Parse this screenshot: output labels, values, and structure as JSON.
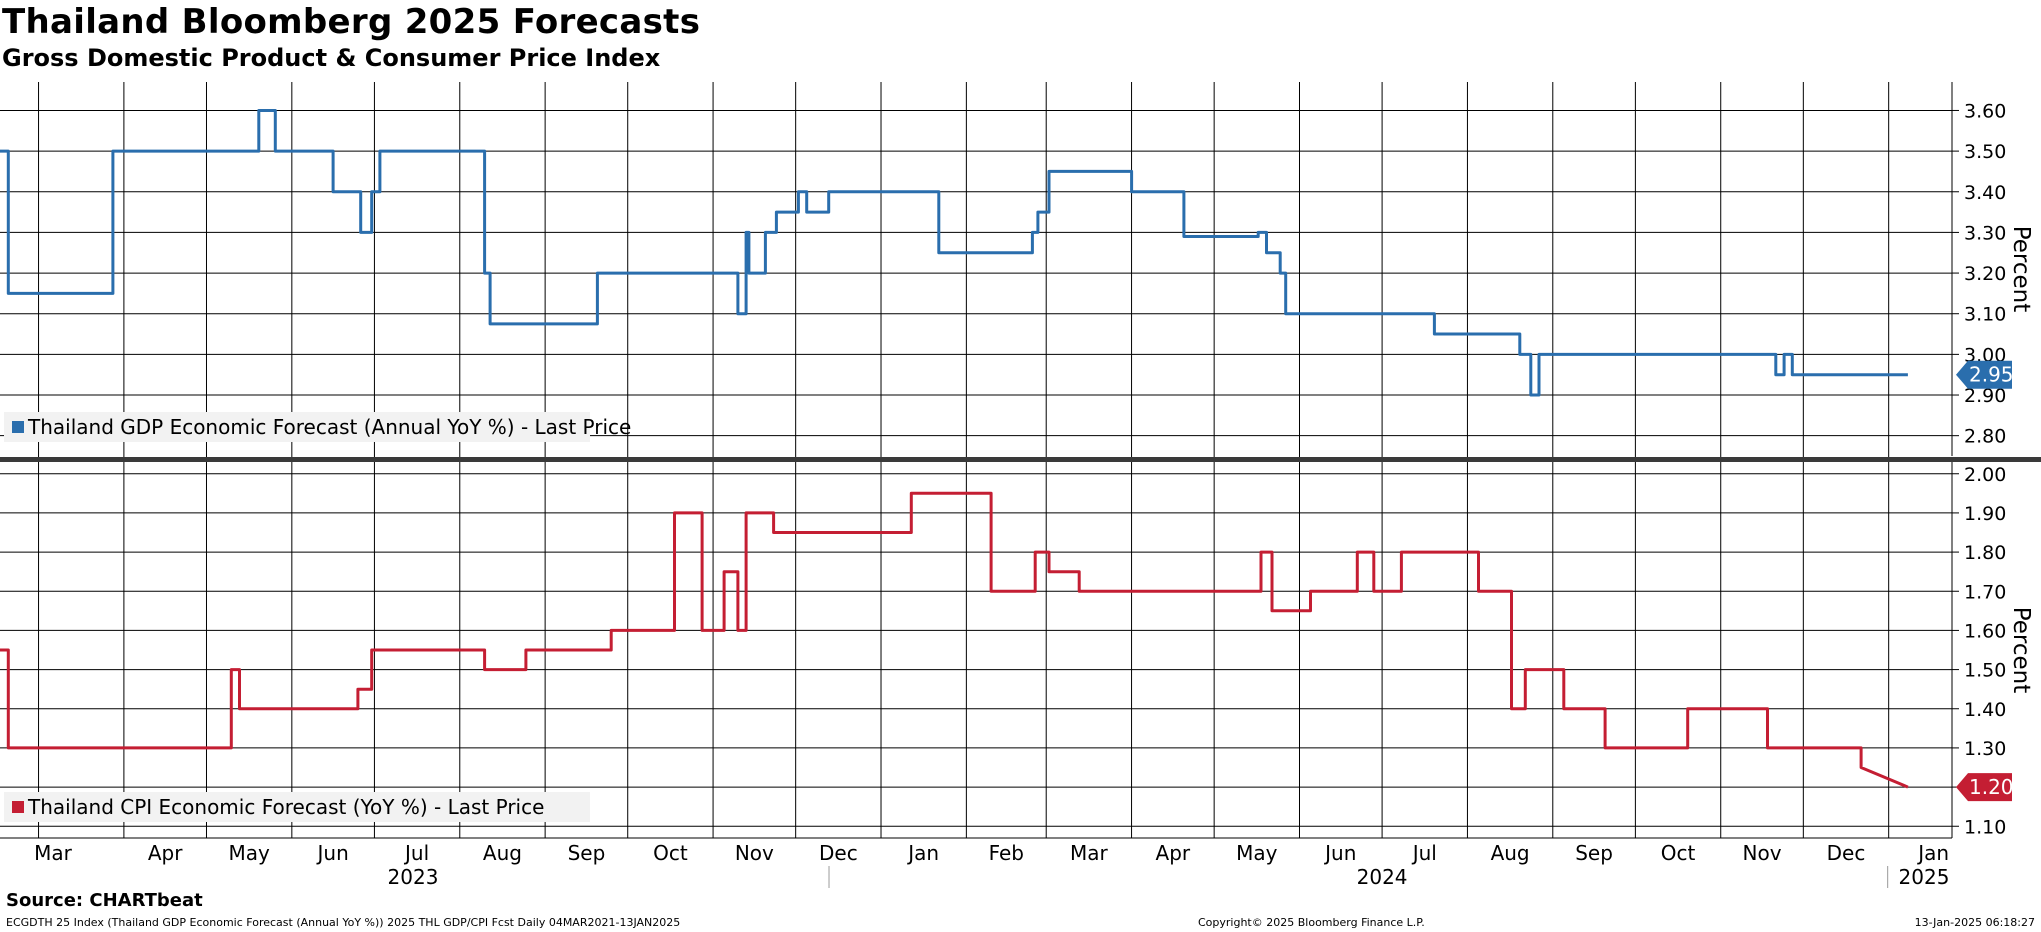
{
  "title": "Thailand Bloomberg 2025 Forecasts",
  "subtitle": "Gross Domestic Product & Consumer Price Index",
  "source": "Source: CHARTbeat",
  "footer": {
    "left": "ECGDTH 25 Index (Thailand GDP Economic Forecast (Annual YoY %)) 2025 THL GDP/CPI Fcst  Daily 04MAR2021-13JAN2025",
    "center": "Copyright© 2025 Bloomberg Finance L.P.",
    "right": "13-Jan-2025 06:18:27"
  },
  "colors": {
    "gdp": "#2a6ead",
    "cpi": "#c41e33",
    "grid": "#000000"
  },
  "chart_data": {
    "type": "line",
    "x_axis": {
      "month_ticks": [
        {
          "label": "Mar",
          "date": "2023-03-01"
        },
        {
          "label": "Apr",
          "date": "2023-04-01"
        },
        {
          "label": "May",
          "date": "2023-05-01"
        },
        {
          "label": "Jun",
          "date": "2023-06-01"
        },
        {
          "label": "Jul",
          "date": "2023-07-01"
        },
        {
          "label": "Aug",
          "date": "2023-08-01"
        },
        {
          "label": "Sep",
          "date": "2023-09-01"
        },
        {
          "label": "Oct",
          "date": "2023-10-01"
        },
        {
          "label": "Nov",
          "date": "2023-11-01"
        },
        {
          "label": "Dec",
          "date": "2023-12-01"
        },
        {
          "label": "Jan",
          "date": "2024-01-01"
        },
        {
          "label": "Feb",
          "date": "2024-02-01"
        },
        {
          "label": "Mar",
          "date": "2024-03-01"
        },
        {
          "label": "Apr",
          "date": "2024-04-01"
        },
        {
          "label": "May",
          "date": "2024-05-01"
        },
        {
          "label": "Jun",
          "date": "2024-06-01"
        },
        {
          "label": "Jul",
          "date": "2024-07-01"
        },
        {
          "label": "Aug",
          "date": "2024-08-01"
        },
        {
          "label": "Sep",
          "date": "2024-09-01"
        },
        {
          "label": "Oct",
          "date": "2024-10-01"
        },
        {
          "label": "Nov",
          "date": "2024-11-01"
        },
        {
          "label": "Dec",
          "date": "2024-12-01"
        },
        {
          "label": "Jan",
          "date": "2025-01-01"
        }
      ],
      "year_labels": [
        {
          "label": "2023",
          "date": "2023-07-15"
        },
        {
          "label": "2024",
          "date": "2024-07-01"
        },
        {
          "label": "2025",
          "date": "2025-01-13"
        }
      ],
      "range": [
        "2023-02-15",
        "2025-01-24"
      ]
    },
    "panels": [
      {
        "name": "Thailand GDP Economic Forecast (Annual YoY %) - Last Price",
        "legend": "Thailand GDP Economic Forecast (Annual YoY %) - Last Price",
        "ylabel": "Percent",
        "ylim": [
          2.75,
          3.67
        ],
        "yticks": [
          2.8,
          2.9,
          3.0,
          3.1,
          3.2,
          3.3,
          3.4,
          3.5,
          3.6
        ],
        "last_value": "2.95",
        "color": "#2a6ead",
        "x": [
          "2023-02-15",
          "2023-02-18",
          "2023-02-18",
          "2023-03-28",
          "2023-03-28",
          "2023-05-20",
          "2023-05-20",
          "2023-05-26",
          "2023-05-26",
          "2023-06-16",
          "2023-06-16",
          "2023-06-26",
          "2023-06-26",
          "2023-06-30",
          "2023-06-30",
          "2023-07-03",
          "2023-07-03",
          "2023-08-10",
          "2023-08-10",
          "2023-08-12",
          "2023-08-12",
          "2023-09-20",
          "2023-09-20",
          "2023-11-10",
          "2023-11-10",
          "2023-11-13",
          "2023-11-13",
          "2023-11-14",
          "2023-11-14",
          "2023-11-20",
          "2023-11-20",
          "2023-11-24",
          "2023-11-24",
          "2023-12-02",
          "2023-12-02",
          "2023-12-05",
          "2023-12-05",
          "2023-12-13",
          "2023-12-13",
          "2024-01-22",
          "2024-01-22",
          "2024-02-25",
          "2024-02-25",
          "2024-02-27",
          "2024-02-27",
          "2024-03-02",
          "2024-03-02",
          "2024-04-01",
          "2024-04-01",
          "2024-04-20",
          "2024-04-20",
          "2024-05-17",
          "2024-05-17",
          "2024-05-20",
          "2024-05-20",
          "2024-05-25",
          "2024-05-25",
          "2024-05-27",
          "2024-05-27",
          "2024-07-20",
          "2024-07-20",
          "2024-08-20",
          "2024-08-20",
          "2024-08-24",
          "2024-08-24",
          "2024-08-27",
          "2024-08-27",
          "2024-11-21",
          "2024-11-21",
          "2024-11-24",
          "2024-11-24",
          "2024-11-27",
          "2024-11-27",
          "2024-12-08",
          "2024-12-08",
          "2024-12-27",
          "2024-12-27",
          "2025-01-08"
        ],
        "values": [
          3.5,
          3.5,
          3.15,
          3.15,
          3.5,
          3.5,
          3.6,
          3.6,
          3.5,
          3.5,
          3.4,
          3.4,
          3.3,
          3.3,
          3.4,
          3.4,
          3.5,
          3.5,
          3.2,
          3.2,
          3.075,
          3.075,
          3.2,
          3.2,
          3.1,
          3.1,
          3.3,
          3.3,
          3.2,
          3.2,
          3.3,
          3.3,
          3.35,
          3.35,
          3.4,
          3.4,
          3.35,
          3.35,
          3.4,
          3.4,
          3.25,
          3.25,
          3.3,
          3.3,
          3.35,
          3.35,
          3.45,
          3.45,
          3.4,
          3.4,
          3.29,
          3.29,
          3.3,
          3.3,
          3.25,
          3.25,
          3.2,
          3.2,
          3.1,
          3.1,
          3.05,
          3.05,
          3.0,
          3.0,
          2.9,
          2.9,
          3.0,
          3.0,
          2.95,
          2.95,
          3.0,
          3.0,
          2.95,
          2.95,
          2.95,
          2.95,
          2.95,
          2.95
        ]
      },
      {
        "name": "Thailand CPI Economic Forecast (YoY %) - Last Price",
        "legend": "Thailand CPI Economic Forecast (YoY %) - Last Price",
        "ylabel": "Percent",
        "ylim": [
          1.07,
          2.03
        ],
        "yticks": [
          1.1,
          1.2,
          1.3,
          1.4,
          1.5,
          1.6,
          1.7,
          1.8,
          1.9,
          2.0
        ],
        "last_value": "1.20",
        "color": "#c41e33",
        "x": [
          "2023-02-15",
          "2023-02-18",
          "2023-02-18",
          "2023-05-10",
          "2023-05-10",
          "2023-05-13",
          "2023-05-13",
          "2023-06-25",
          "2023-06-25",
          "2023-06-30",
          "2023-06-30",
          "2023-07-05",
          "2023-07-05",
          "2023-08-10",
          "2023-08-10",
          "2023-08-25",
          "2023-08-25",
          "2023-09-25",
          "2023-09-25",
          "2023-10-18",
          "2023-10-18",
          "2023-10-28",
          "2023-10-28",
          "2023-11-05",
          "2023-11-05",
          "2023-11-10",
          "2023-11-10",
          "2023-11-13",
          "2023-11-13",
          "2023-11-17",
          "2023-11-17",
          "2023-11-23",
          "2023-11-23",
          "2023-12-05",
          "2023-12-05",
          "2023-12-12",
          "2023-12-12",
          "2024-01-05",
          "2024-01-05",
          "2024-01-08",
          "2024-01-08",
          "2024-01-12",
          "2024-01-12",
          "2024-02-10",
          "2024-02-10",
          "2024-02-26",
          "2024-02-26",
          "2024-03-02",
          "2024-03-02",
          "2024-03-13",
          "2024-03-13",
          "2024-05-18",
          "2024-05-18",
          "2024-05-22",
          "2024-05-22",
          "2024-06-05",
          "2024-06-05",
          "2024-06-22",
          "2024-06-22",
          "2024-06-28",
          "2024-06-28",
          "2024-07-08",
          "2024-07-08",
          "2024-08-05",
          "2024-08-05",
          "2024-08-17",
          "2024-08-17",
          "2024-08-22",
          "2024-08-22",
          "2024-09-05",
          "2024-09-05",
          "2024-09-20",
          "2024-09-20",
          "2024-10-20",
          "2024-10-20",
          "2024-11-18",
          "2024-11-18",
          "2024-12-22",
          "2024-12-22",
          "2025-01-08"
        ],
        "values": [
          1.55,
          1.55,
          1.3,
          1.3,
          1.5,
          1.5,
          1.4,
          1.4,
          1.45,
          1.45,
          1.55,
          1.55,
          1.55,
          1.55,
          1.5,
          1.5,
          1.55,
          1.55,
          1.6,
          1.6,
          1.9,
          1.9,
          1.6,
          1.6,
          1.75,
          1.75,
          1.6,
          1.6,
          1.9,
          1.9,
          1.9,
          1.9,
          1.85,
          1.85,
          1.85,
          1.85,
          1.85,
          1.85,
          1.85,
          1.85,
          1.85,
          1.85,
          1.95,
          1.95,
          1.7,
          1.7,
          1.8,
          1.8,
          1.75,
          1.75,
          1.7,
          1.7,
          1.8,
          1.8,
          1.65,
          1.65,
          1.7,
          1.7,
          1.8,
          1.8,
          1.7,
          1.7,
          1.8,
          1.8,
          1.7,
          1.7,
          1.4,
          1.4,
          1.5,
          1.5,
          1.4,
          1.4,
          1.3,
          1.3,
          1.4,
          1.4,
          1.3,
          1.3,
          1.25,
          1.2
        ]
      }
    ]
  }
}
